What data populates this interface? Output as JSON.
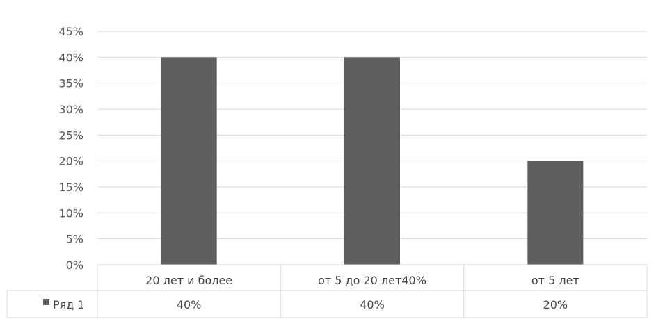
{
  "chart_data": {
    "type": "bar",
    "categories": [
      "20 лет и более",
      "от 5 до 20 лет40%",
      "от 5 лет"
    ],
    "series": [
      {
        "name": "Ряд 1",
        "values": [
          0.4,
          0.4,
          0.2
        ],
        "value_labels": [
          "40%",
          "40%",
          "20%"
        ],
        "color": "#5f5f5f"
      }
    ],
    "ylim": [
      0,
      0.45
    ],
    "y_ticks": [
      {
        "value": 0.0,
        "label": "0%"
      },
      {
        "value": 0.05,
        "label": "5%"
      },
      {
        "value": 0.1,
        "label": "10%"
      },
      {
        "value": 0.15,
        "label": "15%"
      },
      {
        "value": 0.2,
        "label": "20%"
      },
      {
        "value": 0.25,
        "label": "25%"
      },
      {
        "value": 0.3,
        "label": "30%"
      },
      {
        "value": 0.35,
        "label": "35%"
      },
      {
        "value": 0.4,
        "label": "40%"
      },
      {
        "value": 0.45,
        "label": "45%"
      }
    ],
    "grid": true,
    "data_table": true,
    "legend": "data table"
  }
}
